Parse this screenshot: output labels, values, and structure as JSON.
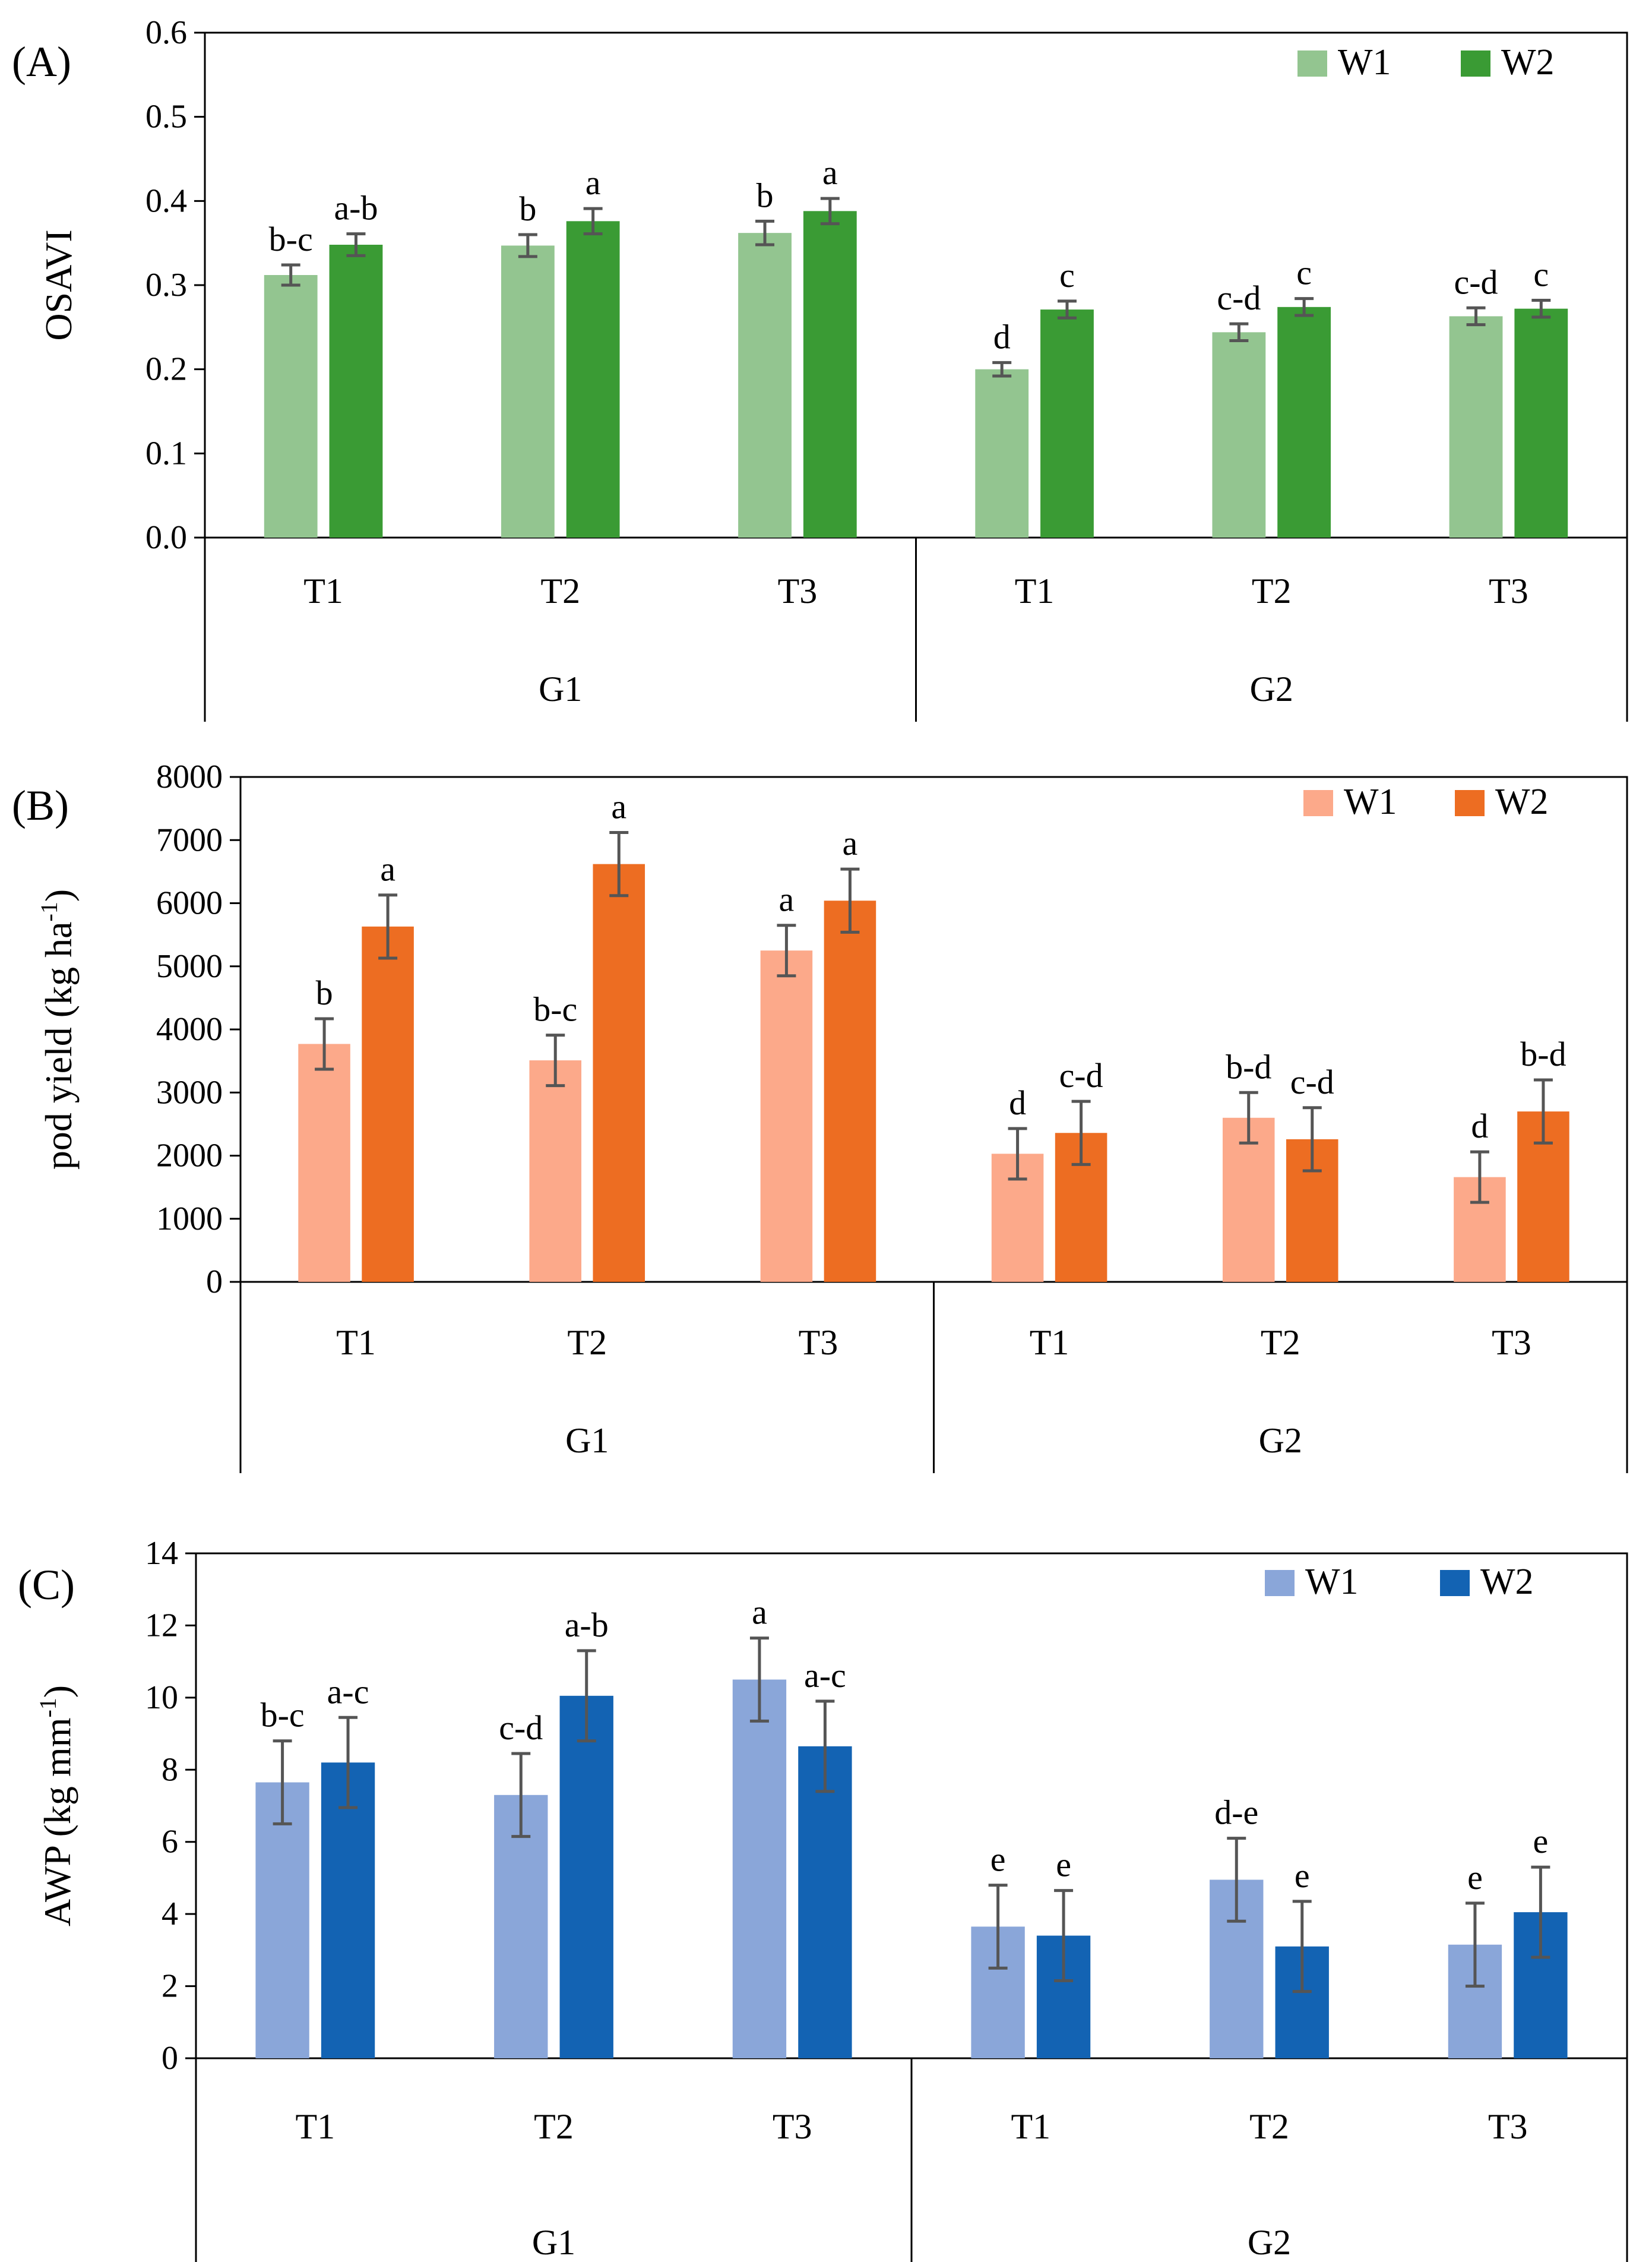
{
  "chart_data": [
    {
      "type": "bar",
      "panel_label": "(A)",
      "ylabel": "OSAVI",
      "ylabel_sup": "",
      "ylabel_end": "",
      "ylim": [
        0,
        0.6
      ],
      "yticks": [
        "0.0",
        "0.1",
        "0.2",
        "0.3",
        "0.4",
        "0.5",
        "0.6"
      ],
      "groups": [
        {
          "name": "G1",
          "categories": [
            "T1",
            "T2",
            "T3"
          ]
        },
        {
          "name": "G2",
          "categories": [
            "T1",
            "T2",
            "T3"
          ]
        }
      ],
      "series": [
        {
          "name": "W1",
          "color": "#93c590",
          "values": [
            0.312,
            0.347,
            0.362,
            0.2,
            0.244,
            0.263
          ],
          "errors": [
            0.012,
            0.013,
            0.014,
            0.008,
            0.01,
            0.01
          ],
          "labels": [
            "b-c",
            "b",
            "b",
            "d",
            "c-d",
            "c-d"
          ]
        },
        {
          "name": "W2",
          "color": "#3a9b34",
          "values": [
            0.348,
            0.376,
            0.388,
            0.271,
            0.274,
            0.272
          ],
          "errors": [
            0.013,
            0.015,
            0.015,
            0.01,
            0.01,
            0.01
          ],
          "labels": [
            "a-b",
            "a",
            "a",
            "c",
            "c",
            "c"
          ]
        }
      ],
      "legend_position": "top-right"
    },
    {
      "type": "bar",
      "panel_label": "(B)",
      "ylabel": "pod yield (kg ha",
      "ylabel_sup": "-1",
      "ylabel_end": ")",
      "ylim": [
        0,
        8000
      ],
      "yticks": [
        "0",
        "1000",
        "2000",
        "3000",
        "4000",
        "5000",
        "6000",
        "7000",
        "8000"
      ],
      "groups": [
        {
          "name": "G1",
          "categories": [
            "T1",
            "T2",
            "T3"
          ]
        },
        {
          "name": "G2",
          "categories": [
            "T1",
            "T2",
            "T3"
          ]
        }
      ],
      "series": [
        {
          "name": "W1",
          "color": "#fca98a",
          "values": [
            3770,
            3510,
            5250,
            2030,
            2600,
            1660
          ],
          "errors": [
            400,
            400,
            400,
            400,
            400,
            400
          ],
          "labels": [
            "b",
            "b-c",
            "a",
            "d",
            "b-d",
            "d"
          ]
        },
        {
          "name": "W2",
          "color": "#ed6d22",
          "values": [
            5630,
            6620,
            6040,
            2360,
            2260,
            2700
          ],
          "errors": [
            500,
            500,
            500,
            500,
            500,
            500
          ],
          "labels": [
            "a",
            "a",
            "a",
            "c-d",
            "c-d",
            "b-d"
          ]
        }
      ],
      "legend_position": "top-right"
    },
    {
      "type": "bar",
      "panel_label": "(C)",
      "ylabel": "AWP (kg mm",
      "ylabel_sup": "-1",
      "ylabel_end": ")",
      "ylim": [
        0,
        14
      ],
      "yticks": [
        "0",
        "2",
        "4",
        "6",
        "8",
        "10",
        "12",
        "14"
      ],
      "groups": [
        {
          "name": "G1",
          "categories": [
            "T1",
            "T2",
            "T3"
          ]
        },
        {
          "name": "G2",
          "categories": [
            "T1",
            "T2",
            "T3"
          ]
        }
      ],
      "series": [
        {
          "name": "W1",
          "color": "#8aa6d9",
          "values": [
            7.65,
            7.3,
            10.5,
            3.65,
            4.95,
            3.15
          ],
          "errors": [
            1.15,
            1.15,
            1.15,
            1.15,
            1.15,
            1.15
          ],
          "labels": [
            "b-c",
            "c-d",
            "a",
            "e",
            "d-e",
            "e"
          ]
        },
        {
          "name": "W2",
          "color": "#1363b3",
          "values": [
            8.2,
            10.05,
            8.65,
            3.4,
            3.1,
            4.05
          ],
          "errors": [
            1.25,
            1.25,
            1.25,
            1.25,
            1.25,
            1.25
          ],
          "labels": [
            "a-c",
            "a-b",
            "a-c",
            "e",
            "e",
            "e"
          ]
        }
      ],
      "legend_position": "top-right"
    }
  ]
}
